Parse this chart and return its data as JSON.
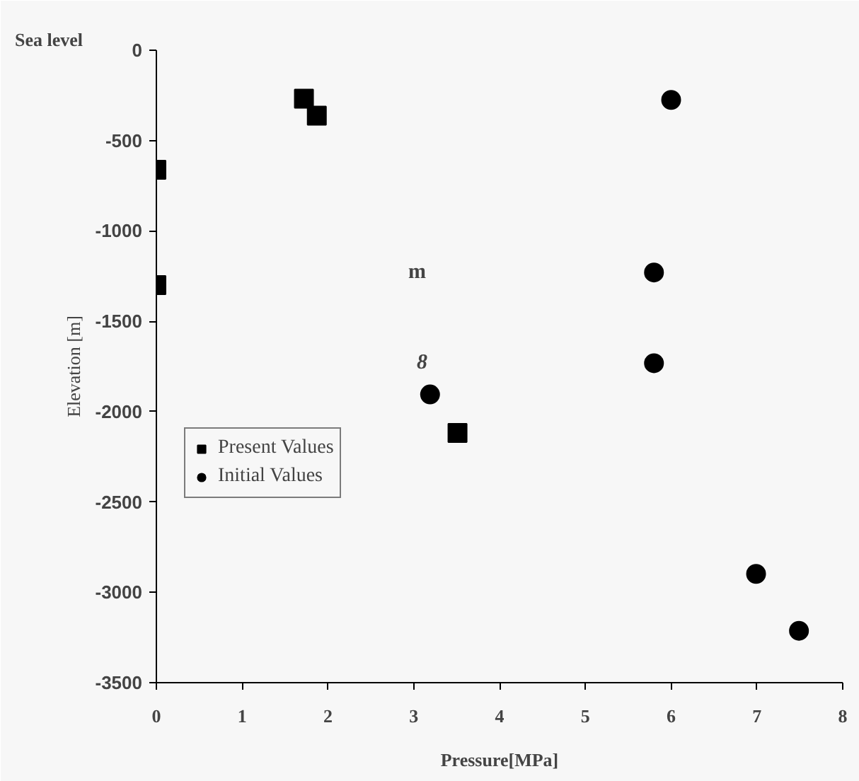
{
  "chart_data": {
    "type": "scatter",
    "xlabel": "Pressure[MPa]",
    "ylabel": "Elevation [m]",
    "xlim": [
      0,
      8
    ],
    "ylim": [
      -3500,
      0
    ],
    "xticks": [
      0,
      1,
      2,
      3,
      4,
      5,
      6,
      7,
      8
    ],
    "yticks": [
      0,
      -500,
      -1000,
      -1500,
      -2000,
      -2500,
      -3000,
      -3500
    ],
    "grid": false,
    "legend": "bottom left",
    "series": [
      {
        "name": "Present Values",
        "color": "#000000",
        "marker": "square",
        "x": [
          1.72,
          1.87,
          0,
          0,
          3.51
        ],
        "values": [
          -268,
          -362,
          -662,
          -1300,
          -2118
        ]
      },
      {
        "name": "Initial Values",
        "color": "#000000",
        "marker": "circle",
        "x": [
          6.0,
          5.8,
          5.8,
          3.19,
          6.99,
          7.49
        ],
        "values": [
          -275,
          -1230,
          -1732,
          -1905,
          -2898,
          -3213
        ]
      }
    ],
    "annotations": [
      "Sea level",
      "m",
      "8"
    ]
  }
}
